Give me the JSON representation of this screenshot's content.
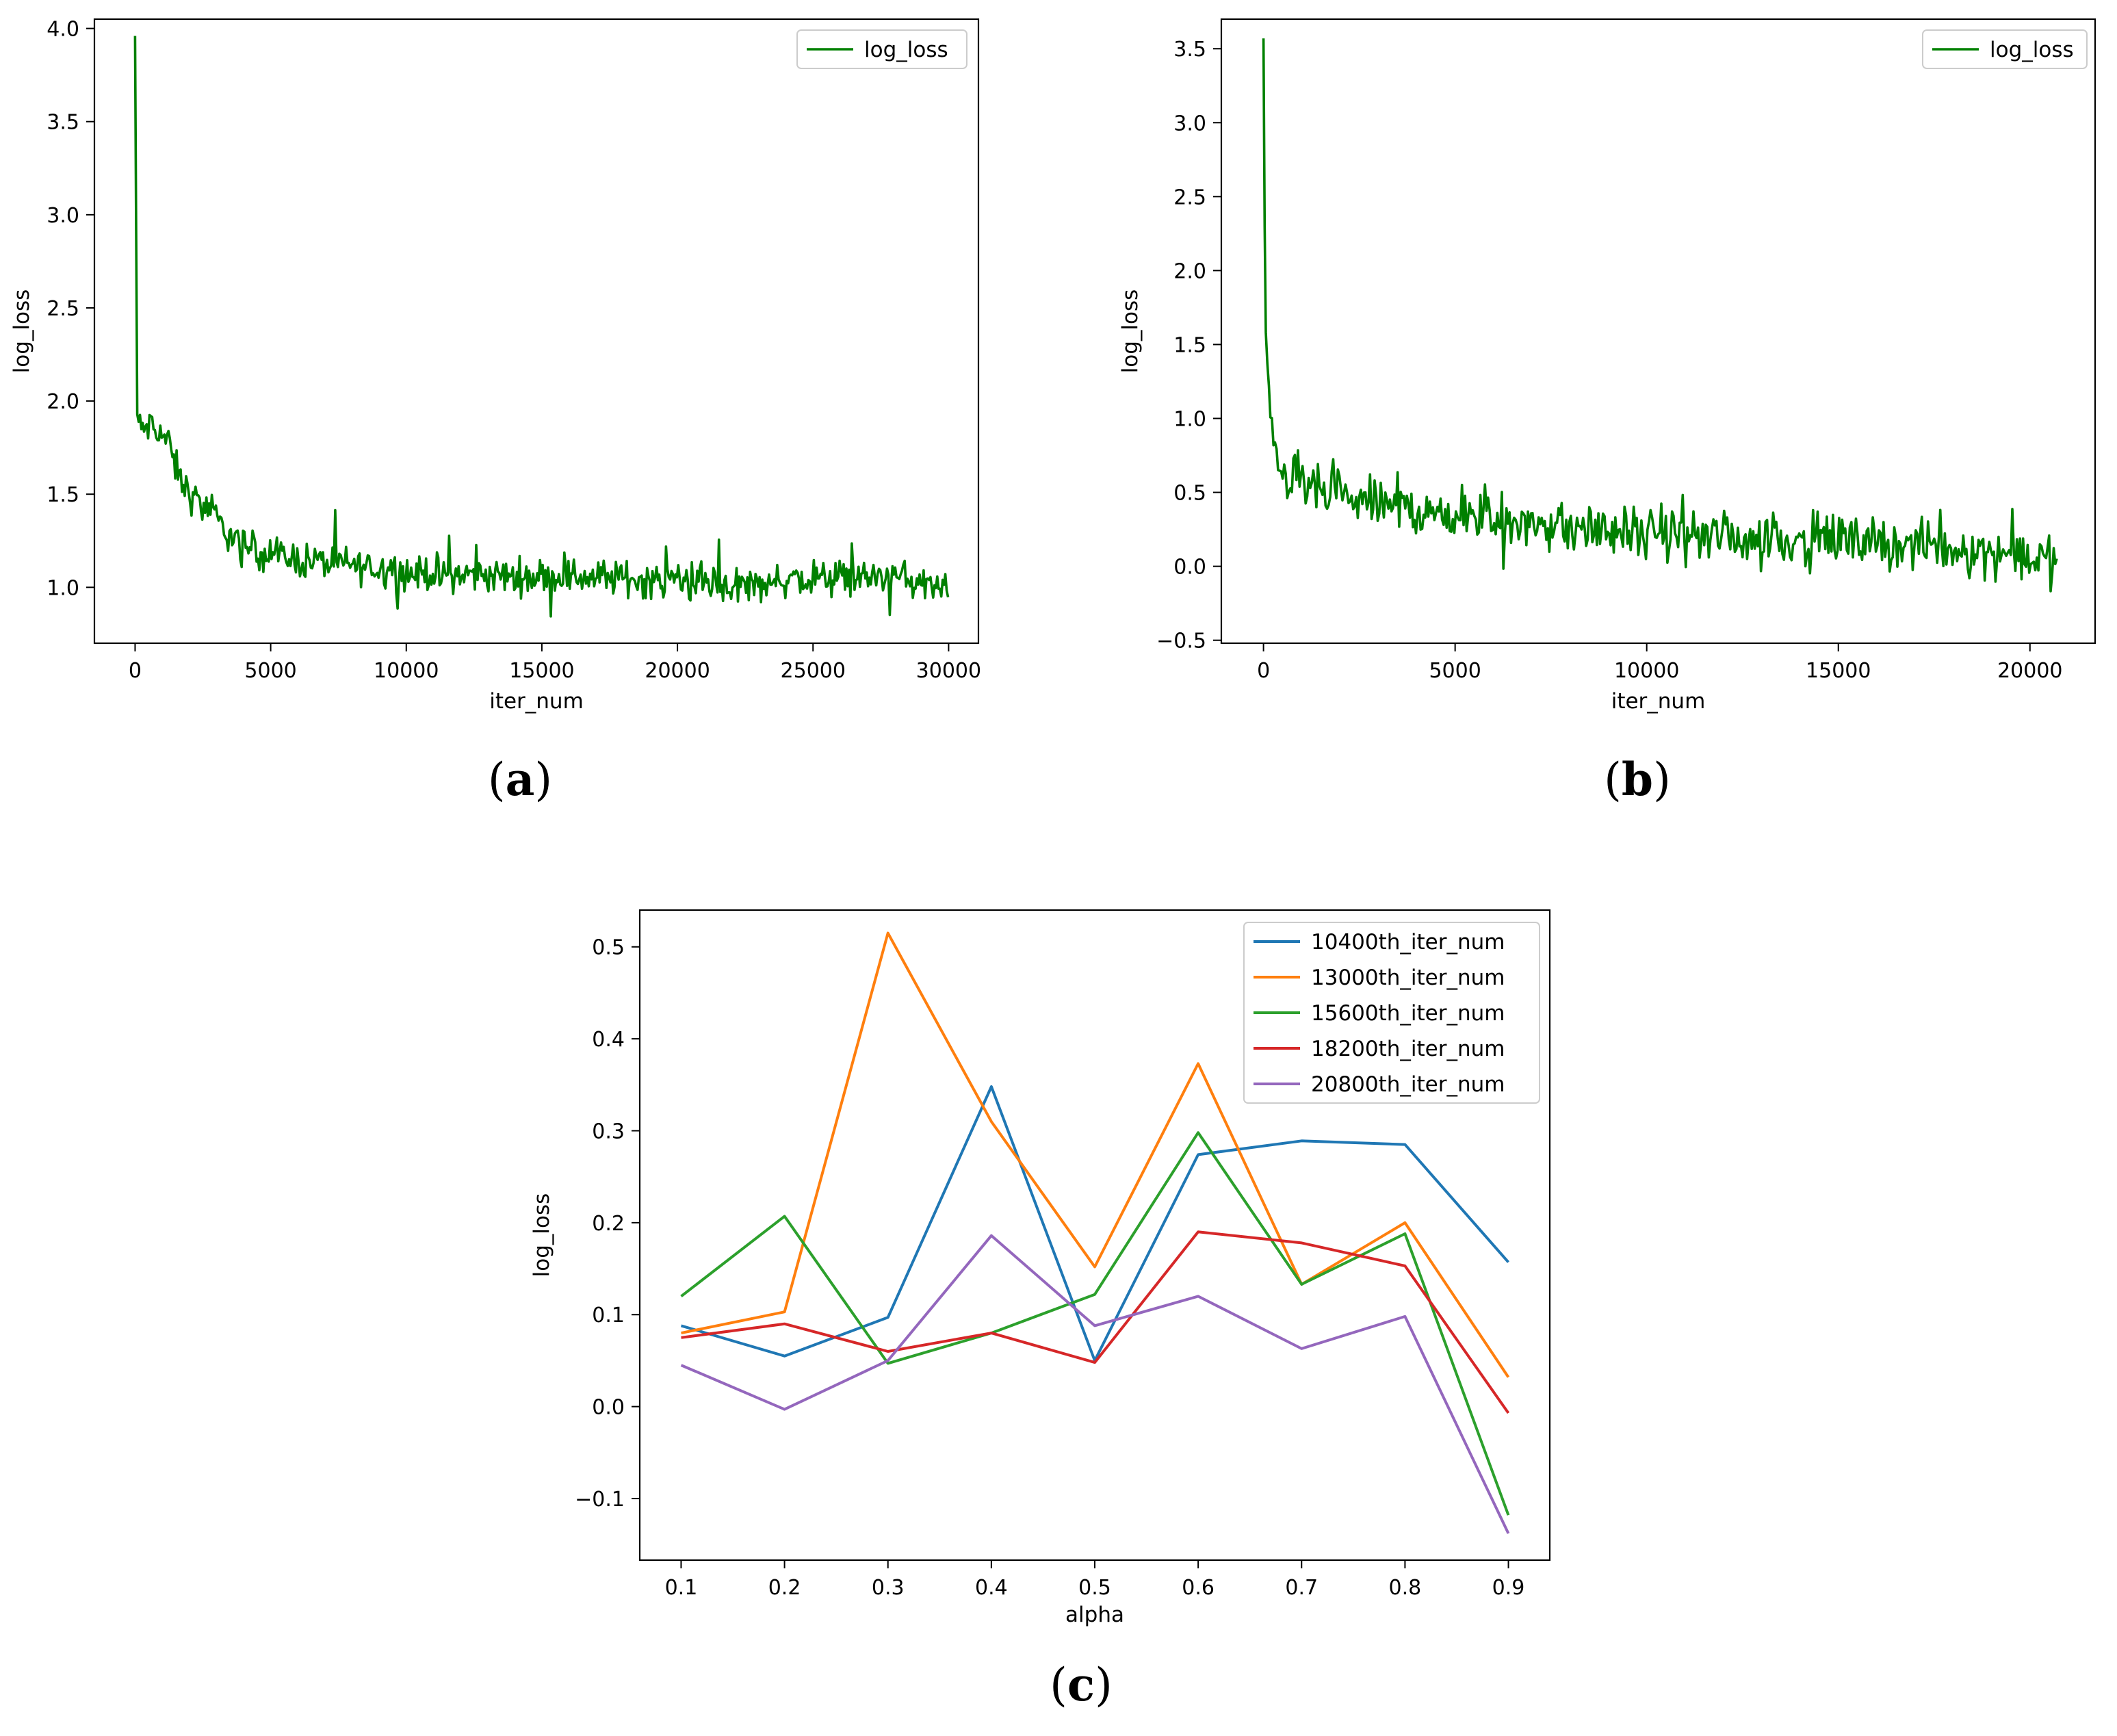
{
  "chart_data": [
    {
      "type": "line",
      "panel_label": "a",
      "xlabel": "iter_num",
      "ylabel": "log_loss",
      "xlim": [
        -1500,
        31100
      ],
      "ylim": [
        0.7,
        4.05
      ],
      "xticks": [
        0,
        5000,
        10000,
        15000,
        20000,
        25000,
        30000
      ],
      "xtick_labels": [
        "0",
        "5000",
        "10000",
        "15000",
        "20000",
        "25000",
        "30000"
      ],
      "yticks": [
        1.0,
        1.5,
        2.0,
        2.5,
        3.0,
        3.5,
        4.0
      ],
      "ytick_labels": [
        "1.0",
        "1.5",
        "2.0",
        "2.5",
        "3.0",
        "3.5",
        "4.0"
      ],
      "legend": "top-right",
      "series": [
        {
          "name": "log_loss",
          "color": "#008000",
          "x": [
            0,
            40,
            80,
            200,
            400,
            800,
            1200,
            1600,
            2000,
            2500,
            3000,
            3500,
            4000,
            5000,
            6000,
            8000,
            10000,
            12000,
            14000,
            16000,
            18000,
            20000,
            22000,
            24000,
            26000,
            28000,
            30000
          ],
          "y": [
            3.96,
            2.9,
            1.92,
            1.84,
            1.86,
            1.86,
            1.78,
            1.6,
            1.5,
            1.44,
            1.36,
            1.28,
            1.22,
            1.18,
            1.15,
            1.12,
            1.08,
            1.07,
            1.06,
            1.06,
            1.05,
            1.03,
            1.01,
            1.04,
            1.05,
            1.06,
            0.98
          ]
        }
      ]
    },
    {
      "type": "line",
      "panel_label": "b",
      "xlabel": "iter_num",
      "ylabel": "log_loss",
      "xlim": [
        -1100,
        21700
      ],
      "ylim": [
        -0.52,
        3.7
      ],
      "xticks": [
        0,
        5000,
        10000,
        15000,
        20000
      ],
      "xtick_labels": [
        "0",
        "5000",
        "10000",
        "15000",
        "20000"
      ],
      "yticks": [
        -0.5,
        0.0,
        0.5,
        1.0,
        1.5,
        2.0,
        2.5,
        3.0,
        3.5
      ],
      "ytick_labels": [
        "−0.5",
        "0.0",
        "0.5",
        "1.0",
        "1.5",
        "2.0",
        "2.5",
        "3.0",
        "3.5"
      ],
      "legend": "top-right",
      "series": [
        {
          "name": "log_loss",
          "color": "#008000",
          "x": [
            0,
            30,
            60,
            100,
            150,
            250,
            400,
            600,
            1000,
            1500,
            2000,
            3000,
            4000,
            5000,
            6000,
            7000,
            8000,
            9000,
            10000,
            11000,
            12000,
            13000,
            14000,
            15000,
            16000,
            17000,
            18000,
            19000,
            20000,
            20700
          ],
          "y": [
            3.57,
            2.3,
            1.6,
            1.3,
            1.05,
            0.85,
            0.72,
            0.62,
            0.55,
            0.5,
            0.46,
            0.42,
            0.38,
            0.34,
            0.31,
            0.29,
            0.26,
            0.24,
            0.22,
            0.21,
            0.2,
            0.19,
            0.18,
            0.17,
            0.16,
            0.14,
            0.12,
            0.1,
            0.08,
            0.02
          ]
        }
      ]
    },
    {
      "type": "line",
      "panel_label": "c",
      "xlabel": "alpha",
      "ylabel": "log_loss",
      "xlim": [
        0.06,
        0.94
      ],
      "ylim": [
        -0.167,
        0.54
      ],
      "x": [
        0.1,
        0.2,
        0.3,
        0.4,
        0.5,
        0.6,
        0.7,
        0.8,
        0.9
      ],
      "xticks": [
        0.1,
        0.2,
        0.3,
        0.4,
        0.5,
        0.6,
        0.7,
        0.8,
        0.9
      ],
      "xtick_labels": [
        "0.1",
        "0.2",
        "0.3",
        "0.4",
        "0.5",
        "0.6",
        "0.7",
        "0.8",
        "0.9"
      ],
      "yticks": [
        -0.1,
        0.0,
        0.1,
        0.2,
        0.3,
        0.4,
        0.5
      ],
      "ytick_labels": [
        "−0.1",
        "0.0",
        "0.1",
        "0.2",
        "0.3",
        "0.4",
        "0.5"
      ],
      "legend": "top-right",
      "series": [
        {
          "name": "10400th_iter_num",
          "color": "#1f77b4",
          "values": [
            0.088,
            0.055,
            0.097,
            0.348,
            0.05,
            0.274,
            0.289,
            0.285,
            0.157
          ]
        },
        {
          "name": "13000th_iter_num",
          "color": "#ff7f0e",
          "values": [
            0.08,
            0.103,
            0.515,
            0.31,
            0.152,
            0.373,
            0.133,
            0.2,
            0.032
          ]
        },
        {
          "name": "15600th_iter_num",
          "color": "#2ca02c",
          "values": [
            0.12,
            0.207,
            0.047,
            0.08,
            0.122,
            0.298,
            0.133,
            0.188,
            -0.118
          ]
        },
        {
          "name": "18200th_iter_num",
          "color": "#d62728",
          "values": [
            0.075,
            0.09,
            0.06,
            0.08,
            0.048,
            0.19,
            0.178,
            0.153,
            -0.007
          ]
        },
        {
          "name": "20800th_iter_num",
          "color": "#9467bd",
          "values": [
            0.045,
            -0.003,
            0.05,
            0.186,
            0.088,
            0.12,
            0.063,
            0.098,
            -0.138
          ]
        }
      ]
    }
  ]
}
